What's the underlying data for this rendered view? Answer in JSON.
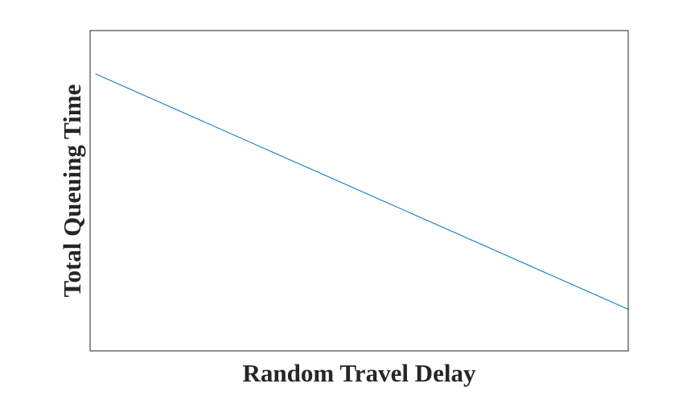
{
  "chart_data": {
    "type": "line",
    "xlabel": "Random Travel Delay",
    "ylabel": "Total Queuing Time",
    "xlim": [
      0,
      1
    ],
    "ylim": [
      0,
      1
    ],
    "x_ticks_shown": false,
    "y_ticks_shown": false,
    "grid": false,
    "series": [
      {
        "color": "#0072BD",
        "x": [
          0.01,
          1.0
        ],
        "y": [
          0.865,
          0.13
        ]
      }
    ]
  }
}
